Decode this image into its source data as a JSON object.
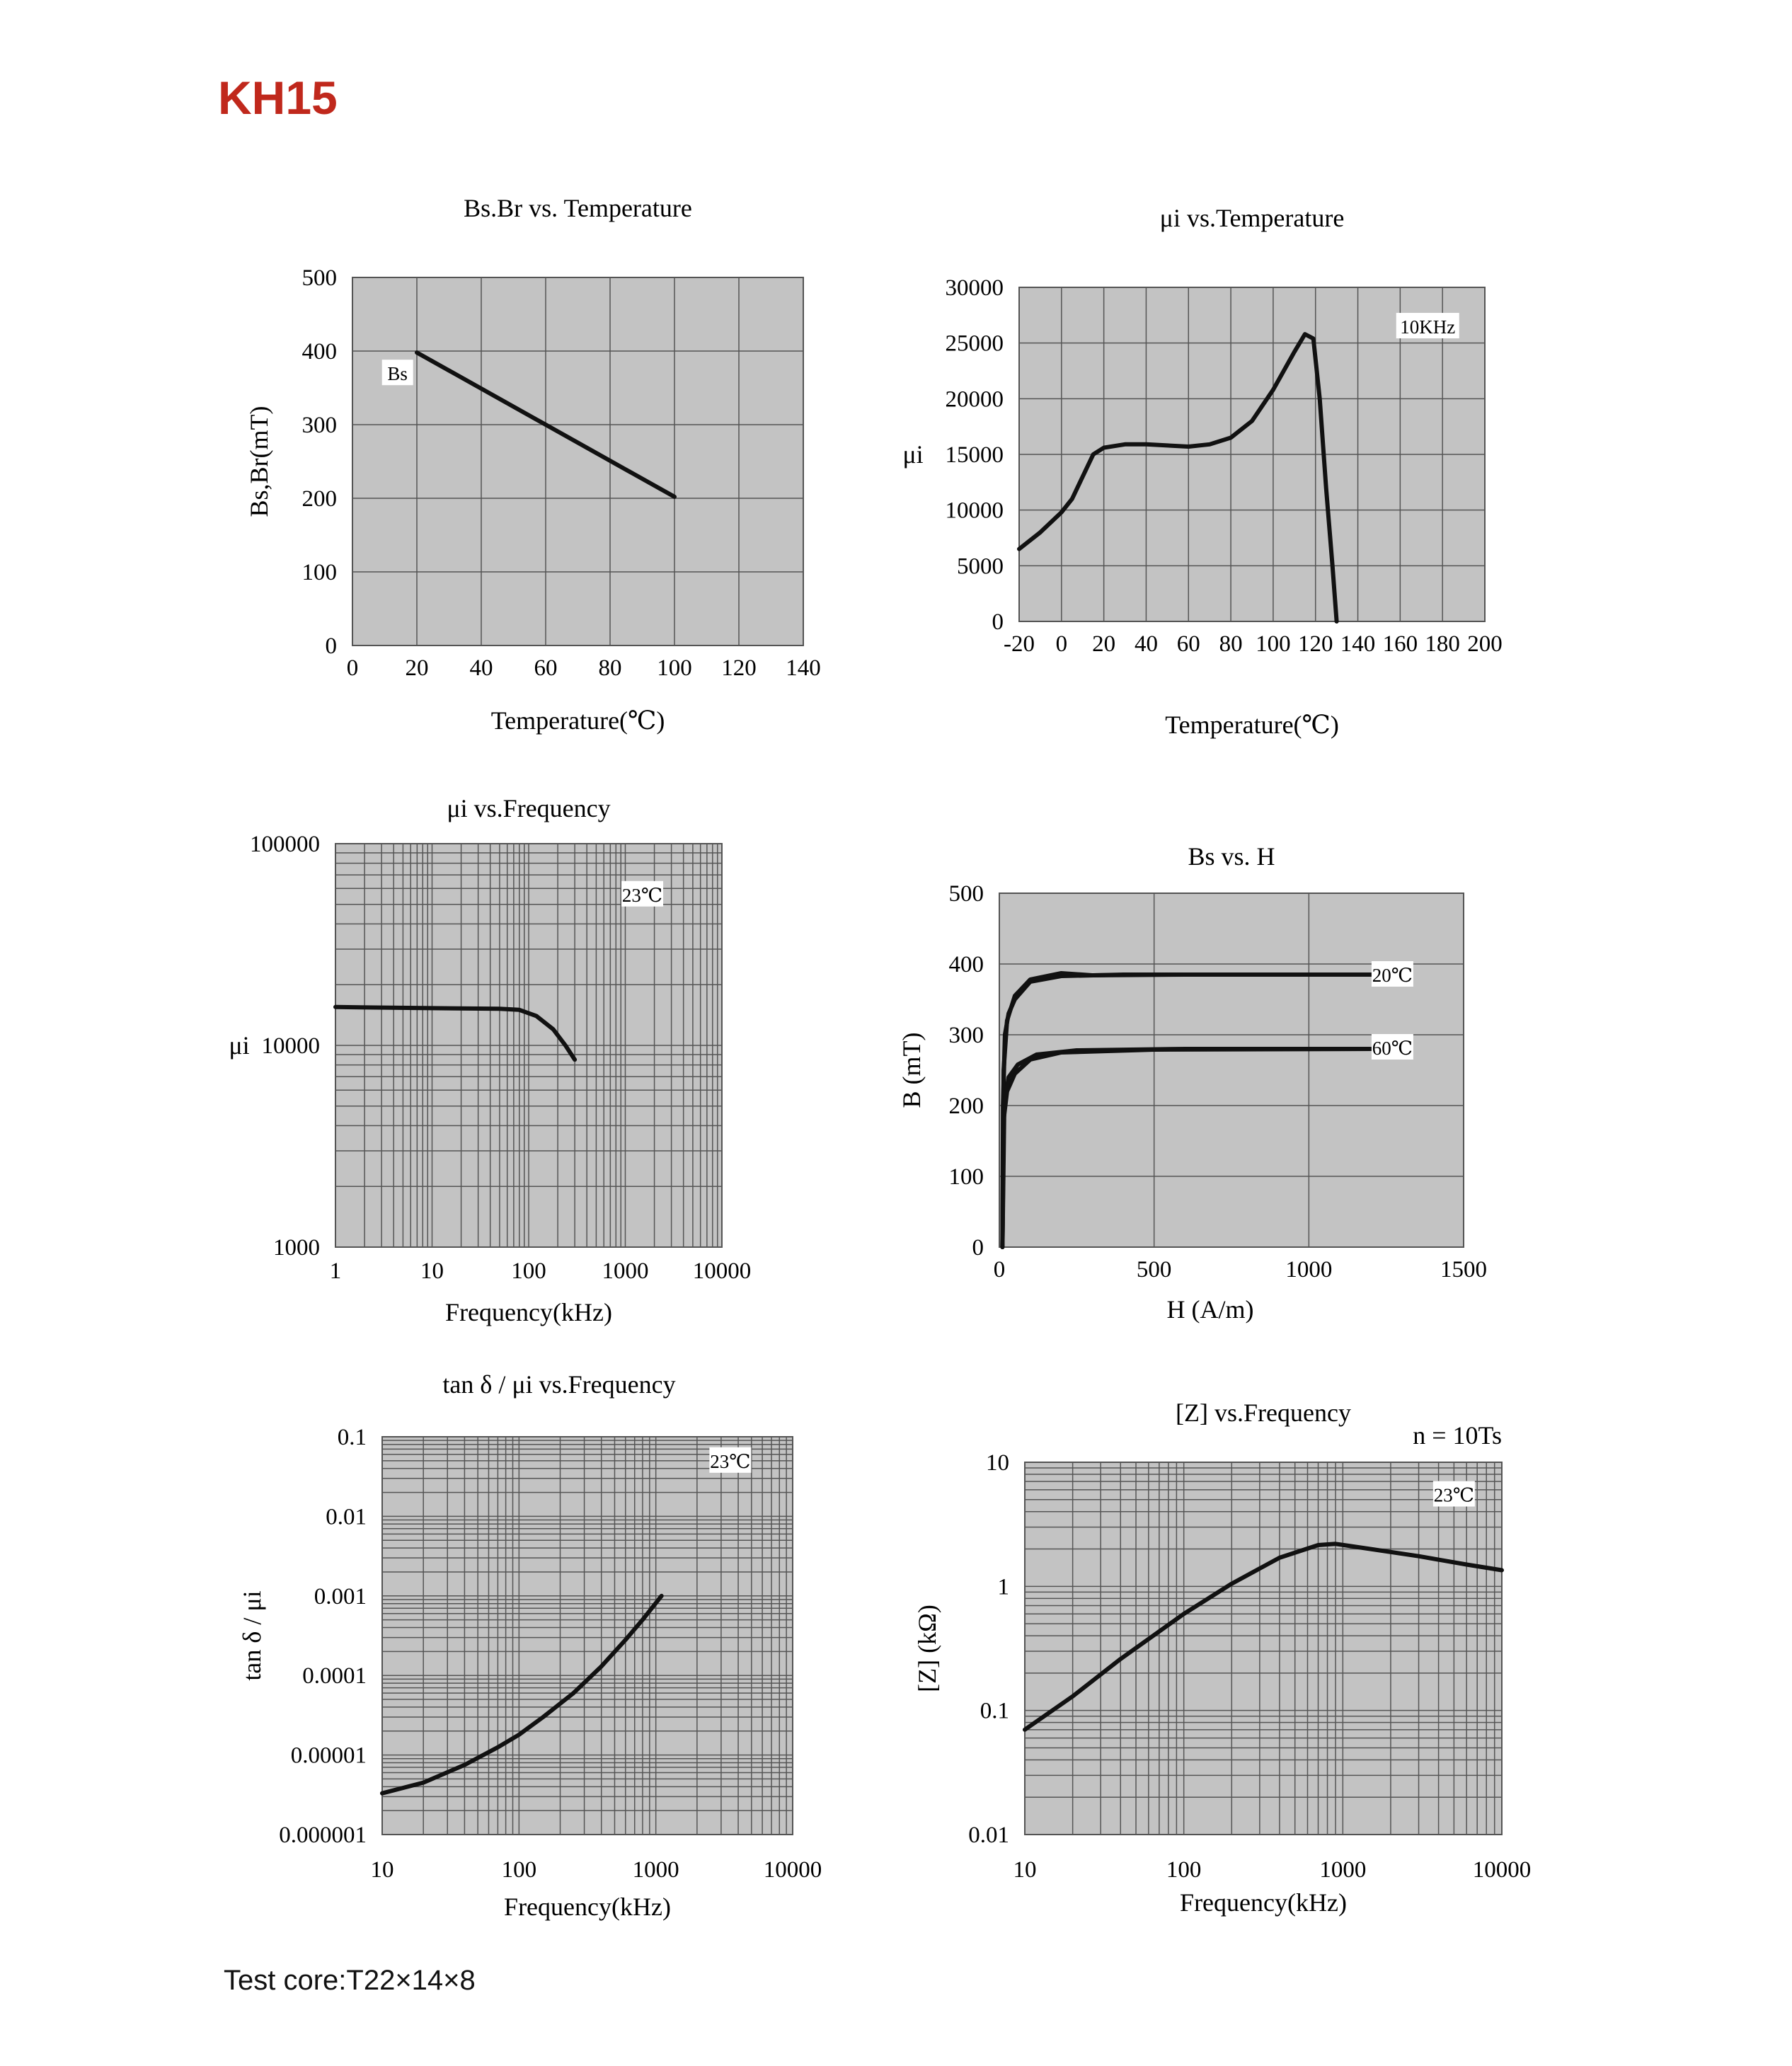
{
  "page": {
    "title": "KH15",
    "footer": "Test core:T22×14×8"
  },
  "colors": {
    "plot_bg": "#c3c3c3",
    "grid": "#555555",
    "curve": "#111111",
    "title": "#c0281c"
  },
  "chart_data": [
    {
      "id": "c1",
      "type": "line",
      "title": "Bs.Br  vs. Temperature",
      "xlabel": "Temperature(℃)",
      "ylabel": "Bs,Br(mT)",
      "x_scale": "linear",
      "y_scale": "linear",
      "xlim": [
        0,
        140
      ],
      "ylim": [
        0,
        500
      ],
      "xticks": [
        0,
        20,
        40,
        60,
        80,
        100,
        120,
        140
      ],
      "yticks": [
        0,
        100,
        200,
        300,
        400,
        500
      ],
      "grid": true,
      "tags": [
        {
          "text": "Bs",
          "x": 14,
          "y": 370
        }
      ],
      "series": [
        {
          "name": "Bs",
          "points": [
            [
              20,
              398
            ],
            [
              100,
              202
            ]
          ]
        }
      ]
    },
    {
      "id": "c2",
      "type": "line",
      "title": "μi  vs.Temperature",
      "xlabel": "Temperature(℃)",
      "ylabel": "μi",
      "x_scale": "linear",
      "y_scale": "linear",
      "xlim": [
        -20,
        200
      ],
      "ylim": [
        0,
        30000
      ],
      "xticks": [
        -20,
        0,
        20,
        40,
        60,
        80,
        100,
        120,
        140,
        160,
        180,
        200
      ],
      "yticks": [
        0,
        5000,
        10000,
        15000,
        20000,
        25000,
        30000
      ],
      "grid": true,
      "tags": [
        {
          "text": "10KHz",
          "x": 173,
          "y": 26500
        }
      ],
      "series": [
        {
          "name": "",
          "points": [
            [
              -20,
              6500
            ],
            [
              -10,
              8000
            ],
            [
              0,
              9800
            ],
            [
              5,
              11000
            ],
            [
              10,
              13000
            ],
            [
              15,
              15000
            ],
            [
              20,
              15600
            ],
            [
              30,
              15900
            ],
            [
              40,
              15900
            ],
            [
              50,
              15800
            ],
            [
              60,
              15700
            ],
            [
              70,
              15900
            ],
            [
              80,
              16500
            ],
            [
              90,
              18000
            ],
            [
              100,
              20800
            ],
            [
              110,
              24200
            ],
            [
              115,
              25800
            ],
            [
              119,
              25400
            ],
            [
              122,
              20000
            ],
            [
              125,
              12000
            ],
            [
              128,
              5000
            ],
            [
              130,
              0
            ]
          ]
        }
      ]
    },
    {
      "id": "c3",
      "type": "line",
      "title": "μi vs.Frequency",
      "xlabel": "Frequency(kHz)",
      "ylabel": "μi",
      "x_scale": "log",
      "y_scale": "log",
      "xlim": [
        1,
        10000
      ],
      "ylim": [
        1000,
        100000
      ],
      "xticks": [
        1,
        10,
        100,
        1000,
        10000
      ],
      "yticks": [
        1000,
        10000,
        100000
      ],
      "grid": true,
      "tags": [
        {
          "text": "23℃",
          "x": 1500,
          "y": 56000
        }
      ],
      "series": [
        {
          "name": "",
          "points": [
            [
              1,
              15500
            ],
            [
              10,
              15300
            ],
            [
              50,
              15200
            ],
            [
              80,
              15000
            ],
            [
              120,
              14000
            ],
            [
              180,
              12000
            ],
            [
              240,
              10000
            ],
            [
              300,
              8500
            ]
          ]
        }
      ]
    },
    {
      "id": "c4",
      "type": "line",
      "title": "Bs   vs.  H",
      "xlabel": "H   (A/m)",
      "ylabel": "B (mT)",
      "x_scale": "linear",
      "y_scale": "linear",
      "xlim": [
        0,
        1500
      ],
      "ylim": [
        0,
        500
      ],
      "xticks": [
        0,
        500,
        1000,
        1500
      ],
      "yticks": [
        0,
        100,
        200,
        300,
        400,
        500
      ],
      "grid": true,
      "tags": [
        {
          "text": "20℃",
          "x": 1270,
          "y": 385
        },
        {
          "text": "60℃",
          "x": 1270,
          "y": 282
        }
      ],
      "series": [
        {
          "name": "20℃",
          "points": [
            [
              10,
              0
            ],
            [
              12,
              200
            ],
            [
              18,
              300
            ],
            [
              30,
              330
            ],
            [
              50,
              350
            ],
            [
              100,
              375
            ],
            [
              200,
              383
            ],
            [
              400,
              385
            ],
            [
              800,
              385
            ],
            [
              1200,
              385
            ]
          ]
        },
        {
          "name": "20℃",
          "points": [
            [
              10,
              0
            ],
            [
              14,
              250
            ],
            [
              25,
              320
            ],
            [
              50,
              355
            ],
            [
              100,
              378
            ],
            [
              200,
              387
            ],
            [
              300,
              384
            ],
            [
              600,
              385
            ],
            [
              1200,
              385
            ]
          ]
        },
        {
          "name": "60℃",
          "points": [
            [
              10,
              0
            ],
            [
              14,
              180
            ],
            [
              25,
              220
            ],
            [
              50,
              245
            ],
            [
              100,
              265
            ],
            [
              200,
              275
            ],
            [
              500,
              279
            ],
            [
              1200,
              280
            ]
          ]
        },
        {
          "name": "60℃",
          "points": [
            [
              10,
              0
            ],
            [
              16,
              200
            ],
            [
              30,
              240
            ],
            [
              60,
              258
            ],
            [
              120,
              272
            ],
            [
              250,
              278
            ],
            [
              600,
              280
            ],
            [
              1200,
              280
            ]
          ]
        }
      ]
    },
    {
      "id": "c5",
      "type": "line",
      "title": "tan δ / μi vs.Frequency",
      "xlabel": "Frequency(kHz)",
      "ylabel": "tan δ / μi",
      "x_scale": "log",
      "y_scale": "log",
      "xlim": [
        10,
        10000
      ],
      "ylim": [
        1e-06,
        0.1
      ],
      "xticks": [
        10,
        100,
        1000,
        10000
      ],
      "yticks": [
        1e-06,
        1e-05,
        0.0001,
        0.001,
        0.01,
        0.1
      ],
      "ytick_labels": [
        "0.000001",
        "0.00001",
        "0.0001",
        "0.001",
        "0.01",
        "0.1"
      ],
      "grid": true,
      "tags": [
        {
          "text": "23℃",
          "x": 3500,
          "y": 0.05
        }
      ],
      "series": [
        {
          "name": "",
          "points": [
            [
              10,
              3.3e-06
            ],
            [
              20,
              4.5e-06
            ],
            [
              40,
              7.5e-06
            ],
            [
              70,
              1.25e-05
            ],
            [
              100,
              1.8e-05
            ],
            [
              150,
              3e-05
            ],
            [
              250,
              6e-05
            ],
            [
              400,
              0.00013
            ],
            [
              600,
              0.00028
            ],
            [
              800,
              0.0005
            ],
            [
              1100,
              0.001
            ]
          ]
        }
      ]
    },
    {
      "id": "c6",
      "type": "line",
      "title": "[Z]    vs.Frequency",
      "xlabel": "Frequency(kHz)",
      "ylabel": "[Z]  (kΩ)",
      "x_scale": "log",
      "y_scale": "log",
      "xlim": [
        10,
        10000
      ],
      "ylim": [
        0.01,
        10
      ],
      "xticks": [
        10,
        100,
        1000,
        10000
      ],
      "yticks": [
        0.01,
        0.1,
        1,
        10
      ],
      "grid": true,
      "note": "n = 10Ts",
      "tags": [
        {
          "text": "23℃",
          "x": 5000,
          "y": 5.5
        }
      ],
      "series": [
        {
          "name": "",
          "points": [
            [
              10,
              0.07
            ],
            [
              20,
              0.13
            ],
            [
              40,
              0.26
            ],
            [
              100,
              0.6
            ],
            [
              200,
              1.05
            ],
            [
              400,
              1.7
            ],
            [
              700,
              2.15
            ],
            [
              900,
              2.2
            ],
            [
              1500,
              2.0
            ],
            [
              3000,
              1.75
            ],
            [
              6000,
              1.5
            ],
            [
              10000,
              1.35
            ]
          ]
        }
      ]
    }
  ]
}
